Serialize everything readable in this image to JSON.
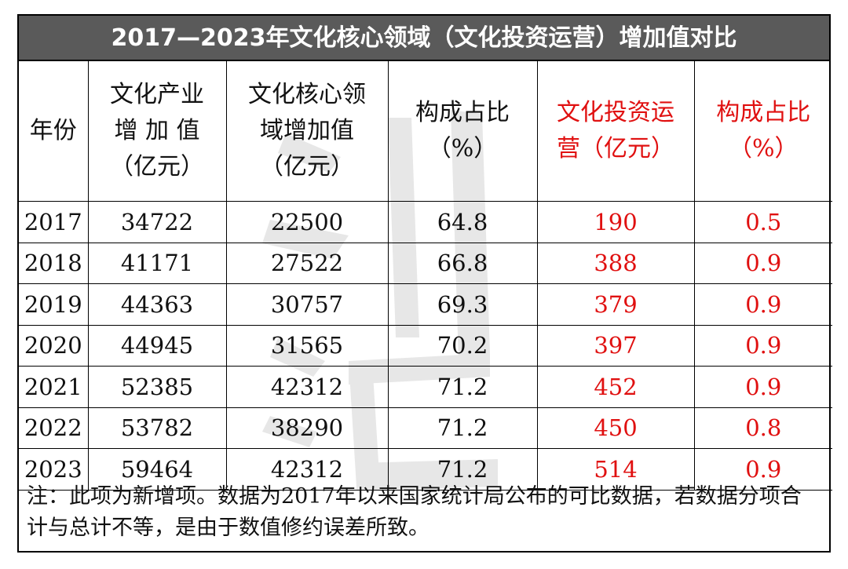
{
  "title": "2017—2023年文化核心领域（文化投资运营）增加值对比",
  "headers": {
    "year": "年份",
    "industry": [
      "文化产业",
      "增 加 值",
      "（亿元）"
    ],
    "core": [
      "文化核心领",
      "域增加值",
      "（亿元）"
    ],
    "core_ratio": [
      "构成占比",
      "（%）"
    ],
    "invest": [
      "文化投资运",
      "营（亿元）"
    ],
    "invest_ratio": [
      "构成占比",
      "（%）"
    ]
  },
  "rows": [
    {
      "year": "2017",
      "industry": "34722",
      "core": "22500",
      "core_ratio": "64.8",
      "invest": "190",
      "invest_ratio": "0.5"
    },
    {
      "year": "2018",
      "industry": "41171",
      "core": "27522",
      "core_ratio": "66.8",
      "invest": "388",
      "invest_ratio": "0.9"
    },
    {
      "year": "2019",
      "industry": "44363",
      "core": "30757",
      "core_ratio": "69.3",
      "invest": "379",
      "invest_ratio": "0.9"
    },
    {
      "year": "2020",
      "industry": "44945",
      "core": "31565",
      "core_ratio": "70.2",
      "invest": "397",
      "invest_ratio": "0.9"
    },
    {
      "year": "2021",
      "industry": "52385",
      "core": "42312",
      "core_ratio": "71.2",
      "invest": "452",
      "invest_ratio": "0.9"
    },
    {
      "year": "2022",
      "industry": "53782",
      "core": "38290",
      "core_ratio": "71.2",
      "invest": "450",
      "invest_ratio": "0.8"
    },
    {
      "year": "2023",
      "industry": "59464",
      "core": "42312",
      "core_ratio": "71.2",
      "invest": "514",
      "invest_ratio": "0.9"
    }
  ],
  "note": "注：此项为新增项。数据为2017年以来国家统计局公布的可比数据，若数据分项合计与总计不等，是由于数值修约误差所致。",
  "colors": {
    "title_bg": "#5a5a5a",
    "highlight": "#e01010"
  }
}
